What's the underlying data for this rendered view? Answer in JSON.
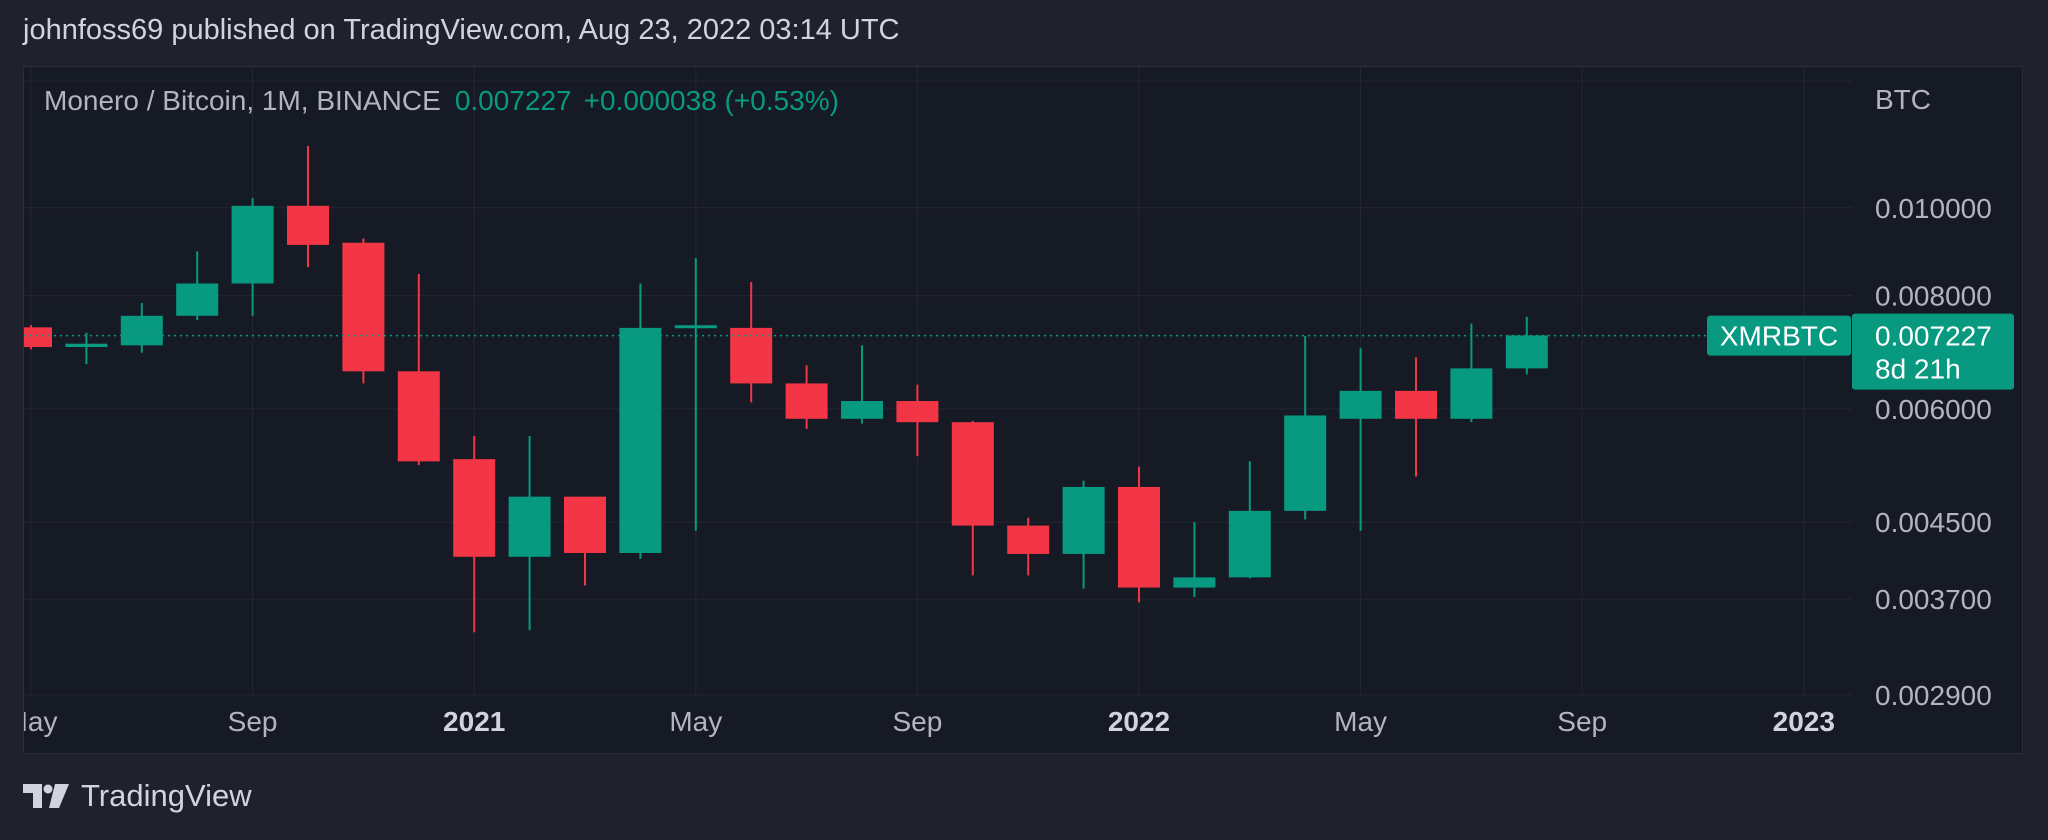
{
  "header": {
    "text": "johnfoss69 published on TradingView.com, Aug 23, 2022 03:14 UTC"
  },
  "legend": {
    "symbol": "Monero / Bitcoin, 1M, BINANCE",
    "last": "0.007227",
    "change": "+0.000038 (+0.53%)"
  },
  "footer": {
    "brand": "TradingView"
  },
  "colors": {
    "up": "#089981",
    "down": "#f23645",
    "background": "#161a25",
    "grid": "#242733",
    "axis_text": "#b2b5be"
  },
  "chart_data": {
    "type": "candlestick",
    "symbol": "XMRBTC",
    "timeframe": "1M",
    "y_unit": "BTC",
    "y_scale": "log",
    "ylim": [
      0.0029,
      0.0138
    ],
    "y_ticks": [
      "0.010000",
      "0.008000",
      "0.006000",
      "0.004500",
      "0.003700",
      "0.002900"
    ],
    "x_ticks": [
      {
        "label": "May",
        "month": "2020-05",
        "bold": false
      },
      {
        "label": "Sep",
        "month": "2020-09",
        "bold": false
      },
      {
        "label": "2021",
        "month": "2021-01",
        "bold": true
      },
      {
        "label": "May",
        "month": "2021-05",
        "bold": false
      },
      {
        "label": "Sep",
        "month": "2021-09",
        "bold": false
      },
      {
        "label": "2022",
        "month": "2022-01",
        "bold": true
      },
      {
        "label": "May",
        "month": "2022-05",
        "bold": false
      },
      {
        "label": "Sep",
        "month": "2022-09",
        "bold": false
      },
      {
        "label": "2023",
        "month": "2023-01",
        "bold": true
      }
    ],
    "candles": [
      {
        "month": "2020-05",
        "open": 0.00738,
        "high": 0.00742,
        "low": 0.00698,
        "close": 0.00702
      },
      {
        "month": "2020-06",
        "open": 0.00702,
        "high": 0.00728,
        "low": 0.00672,
        "close": 0.00708
      },
      {
        "month": "2020-07",
        "open": 0.00705,
        "high": 0.00785,
        "low": 0.00692,
        "close": 0.0076
      },
      {
        "month": "2020-08",
        "open": 0.0076,
        "high": 0.00895,
        "low": 0.00752,
        "close": 0.00825
      },
      {
        "month": "2020-09",
        "open": 0.00825,
        "high": 0.01025,
        "low": 0.0076,
        "close": 0.01005
      },
      {
        "month": "2020-10",
        "open": 0.01005,
        "high": 0.0117,
        "low": 0.0086,
        "close": 0.0091
      },
      {
        "month": "2020-11",
        "open": 0.00915,
        "high": 0.00925,
        "low": 0.0064,
        "close": 0.0066
      },
      {
        "month": "2020-12",
        "open": 0.0066,
        "high": 0.00845,
        "low": 0.0052,
        "close": 0.00525
      },
      {
        "month": "2021-01",
        "open": 0.00528,
        "high": 0.0056,
        "low": 0.0034,
        "close": 0.00412
      },
      {
        "month": "2021-02",
        "open": 0.00412,
        "high": 0.0056,
        "low": 0.00342,
        "close": 0.0048
      },
      {
        "month": "2021-03",
        "open": 0.0048,
        "high": 0.0048,
        "low": 0.00383,
        "close": 0.00416
      },
      {
        "month": "2021-04",
        "open": 0.00416,
        "high": 0.00825,
        "low": 0.0041,
        "close": 0.00737
      },
      {
        "month": "2021-05",
        "open": 0.00737,
        "high": 0.0088,
        "low": 0.0044,
        "close": 0.00742
      },
      {
        "month": "2021-06",
        "open": 0.00737,
        "high": 0.00828,
        "low": 0.0061,
        "close": 0.0064
      },
      {
        "month": "2021-07",
        "open": 0.0064,
        "high": 0.0067,
        "low": 0.0057,
        "close": 0.00585
      },
      {
        "month": "2021-08",
        "open": 0.00585,
        "high": 0.00705,
        "low": 0.00578,
        "close": 0.00612
      },
      {
        "month": "2021-09",
        "open": 0.00612,
        "high": 0.00638,
        "low": 0.00532,
        "close": 0.0058
      },
      {
        "month": "2021-10",
        "open": 0.0058,
        "high": 0.00582,
        "low": 0.00393,
        "close": 0.00446
      },
      {
        "month": "2021-11",
        "open": 0.00446,
        "high": 0.00455,
        "low": 0.00393,
        "close": 0.00415
      },
      {
        "month": "2021-12",
        "open": 0.00415,
        "high": 0.005,
        "low": 0.0038,
        "close": 0.00492
      },
      {
        "month": "2022-01",
        "open": 0.00492,
        "high": 0.00518,
        "low": 0.00367,
        "close": 0.00381
      },
      {
        "month": "2022-02",
        "open": 0.00381,
        "high": 0.0045,
        "low": 0.00372,
        "close": 0.00391
      },
      {
        "month": "2022-03",
        "open": 0.00391,
        "high": 0.00525,
        "low": 0.0039,
        "close": 0.00463
      },
      {
        "month": "2022-04",
        "open": 0.00463,
        "high": 0.00722,
        "low": 0.00453,
        "close": 0.0059
      },
      {
        "month": "2022-05",
        "open": 0.00585,
        "high": 0.007,
        "low": 0.0044,
        "close": 0.00628
      },
      {
        "month": "2022-06",
        "open": 0.00628,
        "high": 0.00684,
        "low": 0.00505,
        "close": 0.00585
      },
      {
        "month": "2022-07",
        "open": 0.00585,
        "high": 0.00745,
        "low": 0.0058,
        "close": 0.00665
      },
      {
        "month": "2022-08",
        "open": 0.00665,
        "high": 0.00758,
        "low": 0.00655,
        "close": 0.00723
      }
    ],
    "last_price": {
      "value": 0.007227,
      "symbol_label": "XMRBTC",
      "price_label": "0.007227",
      "countdown": "8d 21h"
    }
  }
}
